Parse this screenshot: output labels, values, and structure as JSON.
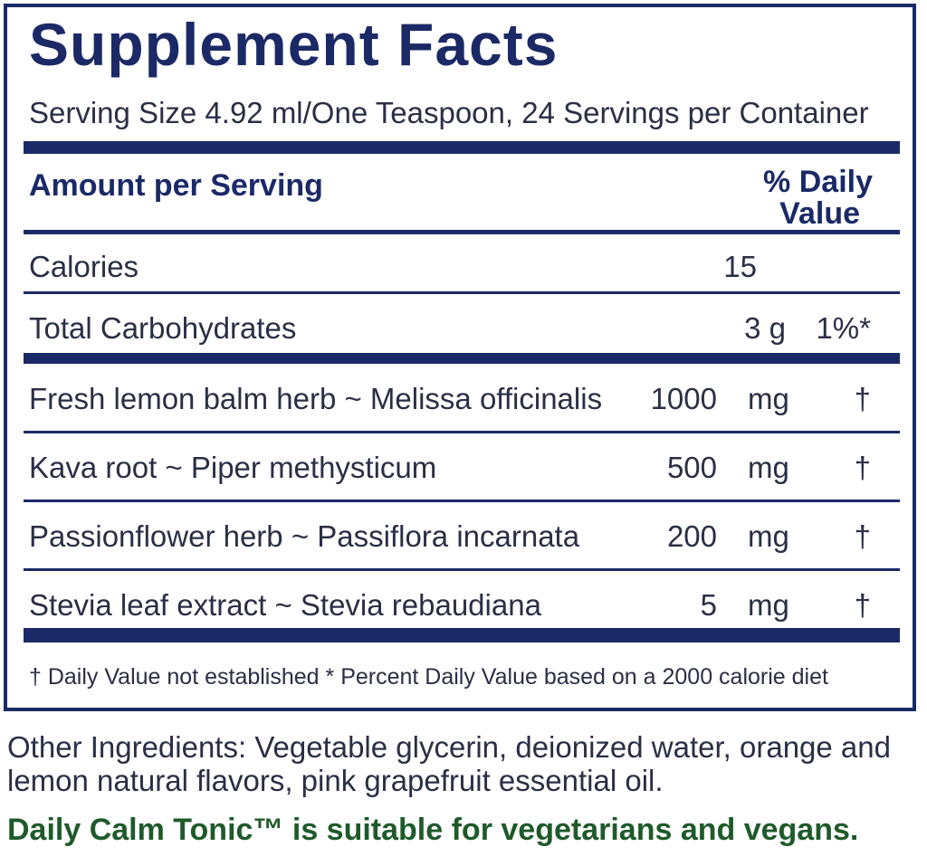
{
  "panel": {
    "title": "Supplement Facts",
    "serving": "Serving Size 4.92 ml/One Teaspoon, 24 Servings per Container",
    "header": {
      "amount_label": "Amount per Serving",
      "dv_line1": "% Daily",
      "dv_line2": "Value"
    },
    "calories": {
      "label": "Calories",
      "amount": "15"
    },
    "carbs": {
      "label": "Total Carbohydrates",
      "amount": "3 g",
      "dv": "1%*"
    },
    "ingredients": [
      {
        "label": "Fresh lemon balm herb ~ Melissa officinalis",
        "amount": "1000",
        "unit": "mg",
        "dv": "†"
      },
      {
        "label": "Kava root ~ Piper methysticum",
        "amount": "500",
        "unit": "mg",
        "dv": "†"
      },
      {
        "label": "Passionflower herb ~ Passiflora incarnata",
        "amount": "200",
        "unit": "mg",
        "dv": "†"
      },
      {
        "label": "Stevia leaf extract ~ Stevia rebaudiana",
        "amount": "5",
        "unit": "mg",
        "dv": "†"
      }
    ],
    "footnote": "†  Daily Value not established   * Percent Daily Value based on a 2000 calorie diet"
  },
  "other_ingredients": "Other Ingredients: Vegetable glycerin, deionized water, orange and lemon natural flavors, pink grapefruit essential oil.",
  "vegan_note": "Daily Calm Tonic™ is suitable for vegetarians and vegans.",
  "colors": {
    "navy": "#1b2a66",
    "green": "#1f5a2a"
  }
}
